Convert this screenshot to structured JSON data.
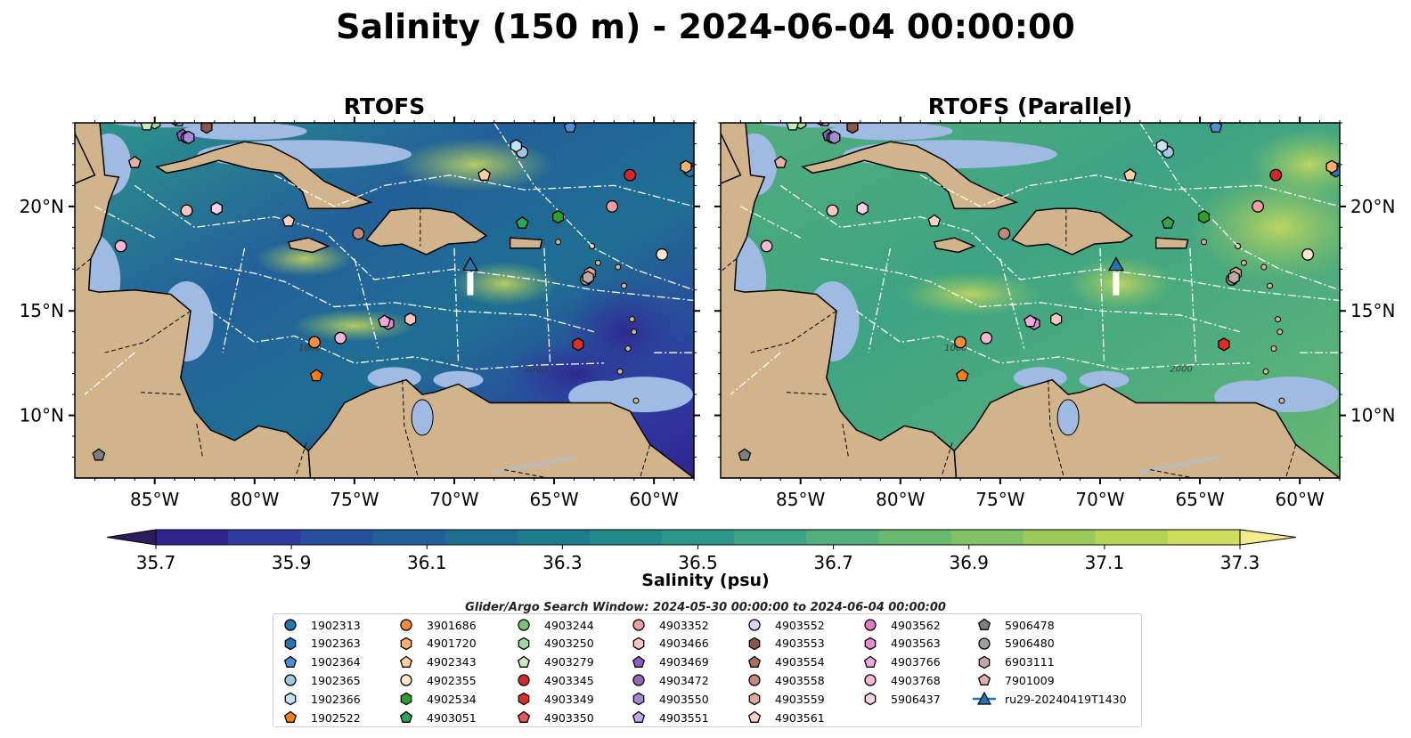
{
  "figure": {
    "title": "Salinity (150 m) - 2024-06-04 00:00:00",
    "search_window": "Glider/Argo Search Window: 2024-05-30 00:00:00 to 2024-06-04 00:00:00"
  },
  "chart_data": [
    {
      "type": "heatmap",
      "title": "RTOFS",
      "xticks": [
        "85°W",
        "80°W",
        "75°W",
        "70°W",
        "65°W",
        "60°W"
      ],
      "yticks": [
        "20°N",
        "15°N",
        "10°N"
      ],
      "xlim": [
        -89,
        -58
      ],
      "ylim": [
        7,
        24
      ],
      "variable": "Salinity (150 m)",
      "description_field": "lower salinity, dark blue in eastern basin"
    },
    {
      "type": "heatmap",
      "title": "RTOFS (Parallel)",
      "xticks": [
        "85°W",
        "80°W",
        "75°W",
        "70°W",
        "65°W",
        "60°W"
      ],
      "yticks": [
        "20°N",
        "15°N",
        "10°N"
      ],
      "xlim": [
        -89,
        -58
      ],
      "ylim": [
        7,
        24
      ],
      "variable": "Salinity (150 m)"
    }
  ],
  "colorbar": {
    "label": "Salinity (psu)",
    "ticks": [
      "35.7",
      "35.9",
      "36.1",
      "36.3",
      "36.5",
      "36.7",
      "36.9",
      "37.1",
      "37.3"
    ],
    "colors": [
      "#2b1c60",
      "#31248f",
      "#2e3ba0",
      "#284f9e",
      "#23609a",
      "#1f6f93",
      "#1e7c8e",
      "#228a8b",
      "#2d9789",
      "#3ea384",
      "#52ae7c",
      "#68b872",
      "#80c265",
      "#9acb5a",
      "#b5d454",
      "#d0dc5e",
      "#f5ea8c"
    ]
  },
  "floats": [
    {
      "id": "1902313",
      "lon": -58.0,
      "lat": 21.8,
      "shape": "circle",
      "color": "#1f77b4"
    },
    {
      "id": "1902363",
      "lon": -58.2,
      "lat": 21.7,
      "shape": "hexagon",
      "color": "#1f77b4"
    },
    {
      "id": "1902364",
      "lon": -64.2,
      "lat": 23.8,
      "shape": "pentagon",
      "color": "#4a90d9"
    },
    {
      "id": "1902365",
      "lon": -66.6,
      "lat": 22.6,
      "shape": "circle",
      "color": "#9ecae1"
    },
    {
      "id": "1902366",
      "lon": -66.9,
      "lat": 22.9,
      "shape": "hexagon",
      "color": "#c6e2f5"
    },
    {
      "id": "1902522",
      "lon": -76.9,
      "lat": 11.9,
      "shape": "pentagon",
      "color": "#ff7f0e"
    },
    {
      "id": "3901686",
      "lon": -77.0,
      "lat": 13.5,
      "shape": "circle",
      "color": "#fd8d3c"
    },
    {
      "id": "4901720",
      "lon": -58.4,
      "lat": 21.9,
      "shape": "hexagon",
      "color": "#fdae6b"
    },
    {
      "id": "4902343",
      "lon": -68.5,
      "lat": 21.5,
      "shape": "pentagon",
      "color": "#fdd0a2"
    },
    {
      "id": "4902355",
      "lon": -59.6,
      "lat": 17.7,
      "shape": "circle",
      "color": "#fee6ce"
    },
    {
      "id": "4902534",
      "lon": -64.8,
      "lat": 19.5,
      "shape": "hexagon",
      "color": "#2ca02c"
    },
    {
      "id": "4903051",
      "lon": -66.6,
      "lat": 19.2,
      "shape": "pentagon",
      "color": "#31a354"
    },
    {
      "id": "4903244",
      "lon": -85.2,
      "lat": 24.2,
      "shape": "circle",
      "color": "#74c476"
    },
    {
      "id": "4903250",
      "lon": -85.0,
      "lat": 24.0,
      "shape": "hexagon",
      "color": "#a1d99b"
    },
    {
      "id": "4903279",
      "lon": -85.4,
      "lat": 23.9,
      "shape": "pentagon",
      "color": "#c7e9c0"
    },
    {
      "id": "4903345",
      "lon": -61.2,
      "lat": 21.5,
      "shape": "circle",
      "color": "#d62728"
    },
    {
      "id": "4903349",
      "lon": -63.8,
      "lat": 13.4,
      "shape": "hexagon",
      "color": "#de2d26"
    },
    {
      "id": "4903350",
      "lon": -87.0,
      "lat": 24.6,
      "shape": "pentagon",
      "color": "#e75a5a"
    },
    {
      "id": "4903352",
      "lon": -62.1,
      "lat": 20.0,
      "shape": "circle",
      "color": "#f29d9d"
    },
    {
      "id": "4903466",
      "lon": -72.2,
      "lat": 14.6,
      "shape": "hexagon",
      "color": "#fcc5c0"
    },
    {
      "id": "4903469",
      "lon": -83.6,
      "lat": 23.4,
      "shape": "pentagon",
      "color": "#8c5fc7"
    },
    {
      "id": "4903472",
      "lon": -83.4,
      "lat": 23.3,
      "shape": "circle",
      "color": "#9467bd"
    },
    {
      "id": "4903550",
      "lon": -83.3,
      "lat": 23.3,
      "shape": "hexagon",
      "color": "#a889d8"
    },
    {
      "id": "4903551",
      "lon": -83.8,
      "lat": 24.1,
      "shape": "pentagon",
      "color": "#c3a9ea"
    },
    {
      "id": "4903552",
      "lon": -84.0,
      "lat": 24.2,
      "shape": "circle",
      "color": "#e0d0f3"
    },
    {
      "id": "4903553",
      "lon": -82.4,
      "lat": 23.8,
      "shape": "hexagon",
      "color": "#8c564b"
    },
    {
      "id": "4903554",
      "lon": -87.5,
      "lat": 24.3,
      "shape": "pentagon",
      "color": "#a9705f"
    },
    {
      "id": "4903558",
      "lon": -74.8,
      "lat": 18.7,
      "shape": "circle",
      "color": "#c08a78"
    },
    {
      "id": "4903559",
      "lon": -63.2,
      "lat": 16.8,
      "shape": "hexagon",
      "color": "#e0a999"
    },
    {
      "id": "4903561",
      "lon": -78.3,
      "lat": 19.3,
      "shape": "pentagon",
      "color": "#f5d3c4"
    },
    {
      "id": "4903562",
      "lon": -83.9,
      "lat": 24.4,
      "shape": "circle",
      "color": "#e377c2"
    },
    {
      "id": "4903563",
      "lon": -73.3,
      "lat": 14.4,
      "shape": "hexagon",
      "color": "#e98ad0"
    },
    {
      "id": "4903766",
      "lon": -73.5,
      "lat": 14.5,
      "shape": "pentagon",
      "color": "#f3a7de"
    },
    {
      "id": "4903768",
      "lon": -75.7,
      "lat": 13.7,
      "shape": "circle",
      "color": "#f7b6d2"
    },
    {
      "id": "5906437",
      "lon": -81.9,
      "lat": 19.9,
      "shape": "hexagon",
      "color": "#fbd0ea"
    },
    {
      "id": "5906478",
      "lon": -87.8,
      "lat": 8.1,
      "shape": "pentagon",
      "color": "#7f7f7f"
    },
    {
      "id": "5906480",
      "lon": -63.4,
      "lat": 16.5,
      "shape": "circle",
      "color": "#a0a0a0"
    },
    {
      "id": "6903111",
      "lon": -63.3,
      "lat": 16.6,
      "shape": "hexagon",
      "color": "#c0a8a8"
    },
    {
      "id": "7901009",
      "lon": -86.0,
      "lat": 22.1,
      "shape": "pentagon",
      "color": "#e6b0a8"
    },
    {
      "id": "extra-1",
      "lon": -86.7,
      "lat": 18.1,
      "shape": "circle",
      "color": "#f7b6d2"
    },
    {
      "id": "extra-2",
      "lon": -83.4,
      "lat": 19.8,
      "shape": "circle",
      "color": "#fcc5c0"
    }
  ],
  "glider": {
    "id": "ru29-20240419T1430",
    "lon": -69.2,
    "lat": 17.2,
    "color": "#1f77b4"
  },
  "legend": {
    "columns": [
      [
        {
          "label": "1902313",
          "shape": "circle",
          "color": "#1f77b4"
        },
        {
          "label": "1902363",
          "shape": "hexagon",
          "color": "#1f77b4"
        },
        {
          "label": "1902364",
          "shape": "pentagon",
          "color": "#4a90d9"
        },
        {
          "label": "1902365",
          "shape": "circle",
          "color": "#9ecae1"
        },
        {
          "label": "1902366",
          "shape": "hexagon",
          "color": "#c6e2f5"
        },
        {
          "label": "1902522",
          "shape": "pentagon",
          "color": "#ff7f0e"
        }
      ],
      [
        {
          "label": "3901686",
          "shape": "circle",
          "color": "#fd8d3c"
        },
        {
          "label": "4901720",
          "shape": "hexagon",
          "color": "#fdae6b"
        },
        {
          "label": "4902343",
          "shape": "pentagon",
          "color": "#fdd0a2"
        },
        {
          "label": "4902355",
          "shape": "circle",
          "color": "#fee6ce"
        },
        {
          "label": "4902534",
          "shape": "hexagon",
          "color": "#2ca02c"
        },
        {
          "label": "4903051",
          "shape": "pentagon",
          "color": "#31a354"
        }
      ],
      [
        {
          "label": "4903244",
          "shape": "circle",
          "color": "#74c476"
        },
        {
          "label": "4903250",
          "shape": "hexagon",
          "color": "#a1d99b"
        },
        {
          "label": "4903279",
          "shape": "pentagon",
          "color": "#c7e9c0"
        },
        {
          "label": "4903345",
          "shape": "circle",
          "color": "#d62728"
        },
        {
          "label": "4903349",
          "shape": "hexagon",
          "color": "#de2d26"
        },
        {
          "label": "4903350",
          "shape": "pentagon",
          "color": "#e75a5a"
        }
      ],
      [
        {
          "label": "4903352",
          "shape": "circle",
          "color": "#f29d9d"
        },
        {
          "label": "4903466",
          "shape": "hexagon",
          "color": "#fcc5c0"
        },
        {
          "label": "4903469",
          "shape": "pentagon",
          "color": "#8c5fc7"
        },
        {
          "label": "4903472",
          "shape": "circle",
          "color": "#9467bd"
        },
        {
          "label": "4903550",
          "shape": "hexagon",
          "color": "#a889d8"
        },
        {
          "label": "4903551",
          "shape": "pentagon",
          "color": "#c3a9ea"
        }
      ],
      [
        {
          "label": "4903552",
          "shape": "circle",
          "color": "#e0d0f3"
        },
        {
          "label": "4903553",
          "shape": "hexagon",
          "color": "#8c564b"
        },
        {
          "label": "4903554",
          "shape": "pentagon",
          "color": "#a9705f"
        },
        {
          "label": "4903558",
          "shape": "circle",
          "color": "#c08a78"
        },
        {
          "label": "4903559",
          "shape": "hexagon",
          "color": "#e0a999"
        },
        {
          "label": "4903561",
          "shape": "pentagon",
          "color": "#f5d3c4"
        }
      ],
      [
        {
          "label": "4903562",
          "shape": "circle",
          "color": "#e377c2"
        },
        {
          "label": "4903563",
          "shape": "hexagon",
          "color": "#e98ad0"
        },
        {
          "label": "4903766",
          "shape": "pentagon",
          "color": "#f3a7de"
        },
        {
          "label": "4903768",
          "shape": "circle",
          "color": "#f7b6d2"
        },
        {
          "label": "5906437",
          "shape": "hexagon",
          "color": "#fbd0ea"
        }
      ],
      [
        {
          "label": "5906478",
          "shape": "pentagon",
          "color": "#7f7f7f"
        },
        {
          "label": "5906480",
          "shape": "circle",
          "color": "#a0a0a0"
        },
        {
          "label": "6903111",
          "shape": "hexagon",
          "color": "#c0a8a8"
        },
        {
          "label": "7901009",
          "shape": "pentagon",
          "color": "#e6b0a8"
        },
        {
          "label": "ru29-20240419T1430",
          "shape": "glider",
          "color": "#1f77b4"
        }
      ]
    ]
  },
  "map_labels": [
    "1000",
    "2000",
    "1000",
    "2000"
  ]
}
